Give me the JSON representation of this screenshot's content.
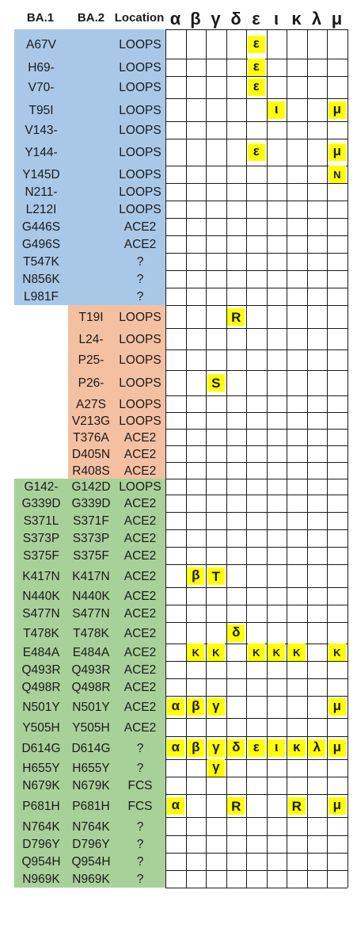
{
  "headers": {
    "ba1": "BA.1",
    "ba2": "BA.2",
    "location": "Location",
    "greek": [
      "α",
      "β",
      "γ",
      "δ",
      "ε",
      "ι",
      "κ",
      "λ",
      "μ"
    ]
  },
  "colors": {
    "ba1_band": "#a9c8e8",
    "ba2_band": "#f4c0a2",
    "shared_band": "#a8d19a",
    "highlight": "#ffff00"
  },
  "rows": [
    {
      "ba1": "A67V",
      "ba2": "",
      "loc": "LOOPS",
      "group": "ba1",
      "marks": {
        "4": "ε"
      }
    },
    {
      "ba1": "H69-",
      "ba2": "",
      "loc": "LOOPS",
      "group": "ba1",
      "marks": {
        "4": "ε"
      }
    },
    {
      "ba1": "V70-",
      "ba2": "",
      "loc": "LOOPS",
      "group": "ba1",
      "marks": {
        "4": "ε"
      }
    },
    {
      "ba1": "T95I",
      "ba2": "",
      "loc": "LOOPS",
      "group": "ba1",
      "marks": {
        "5": "ι",
        "8": "μ"
      }
    },
    {
      "ba1": "V143-",
      "ba2": "",
      "loc": "LOOPS",
      "group": "ba1",
      "marks": {}
    },
    {
      "ba1": "Y144-",
      "ba2": "",
      "loc": "LOOPS",
      "group": "ba1",
      "marks": {
        "4": "ε",
        "8": "μ"
      }
    },
    {
      "ba1": "Y145D",
      "ba2": "",
      "loc": "LOOPS",
      "group": "ba1",
      "marks": {
        "8": "N"
      }
    },
    {
      "ba1": "N211-",
      "ba2": "",
      "loc": "LOOPS",
      "group": "ba1",
      "marks": {}
    },
    {
      "ba1": "L212I",
      "ba2": "",
      "loc": "LOOPS",
      "group": "ba1",
      "marks": {}
    },
    {
      "ba1": "G446S",
      "ba2": "",
      "loc": "ACE2",
      "group": "ba1",
      "marks": {}
    },
    {
      "ba1": "G496S",
      "ba2": "",
      "loc": "ACE2",
      "group": "ba1",
      "marks": {}
    },
    {
      "ba1": "T547K",
      "ba2": "",
      "loc": "?",
      "group": "ba1",
      "marks": {}
    },
    {
      "ba1": "N856K",
      "ba2": "",
      "loc": "?",
      "group": "ba1",
      "marks": {}
    },
    {
      "ba1": "L981F",
      "ba2": "",
      "loc": "?",
      "group": "ba1",
      "marks": {}
    },
    {
      "ba1": "",
      "ba2": "T19I",
      "loc": "LOOPS",
      "group": "ba2",
      "marks": {
        "3": "R"
      }
    },
    {
      "ba1": "",
      "ba2": "L24-",
      "loc": "LOOPS",
      "group": "ba2",
      "marks": {}
    },
    {
      "ba1": "",
      "ba2": "P25-",
      "loc": "LOOPS",
      "group": "ba2",
      "marks": {}
    },
    {
      "ba1": "",
      "ba2": "P26-",
      "loc": "LOOPS",
      "group": "ba2",
      "marks": {
        "2": "S"
      }
    },
    {
      "ba1": "",
      "ba2": "A27S",
      "loc": "LOOPS",
      "group": "ba2",
      "marks": {}
    },
    {
      "ba1": "",
      "ba2": "V213G",
      "loc": "LOOPS",
      "group": "ba2",
      "marks": {}
    },
    {
      "ba1": "",
      "ba2": "T376A",
      "loc": "ACE2",
      "group": "ba2",
      "marks": {}
    },
    {
      "ba1": "",
      "ba2": "D405N",
      "loc": "ACE2",
      "group": "ba2",
      "marks": {}
    },
    {
      "ba1": "",
      "ba2": "R408S",
      "loc": "ACE2",
      "group": "ba2",
      "marks": {}
    },
    {
      "ba1": "G142-",
      "ba2": "G142D",
      "loc": "LOOPS",
      "group": "both",
      "marks": {}
    },
    {
      "ba1": "G339D",
      "ba2": "G339D",
      "loc": "ACE2",
      "group": "both",
      "marks": {}
    },
    {
      "ba1": "S371L",
      "ba2": "S371F",
      "loc": "ACE2",
      "group": "both",
      "marks": {}
    },
    {
      "ba1": "S373P",
      "ba2": "S373P",
      "loc": "ACE2",
      "group": "both",
      "marks": {}
    },
    {
      "ba1": "S375F",
      "ba2": "S375F",
      "loc": "ACE2",
      "group": "both",
      "marks": {}
    },
    {
      "ba1": "K417N",
      "ba2": "K417N",
      "loc": "ACE2",
      "group": "both",
      "marks": {
        "1": "β",
        "2": "T"
      }
    },
    {
      "ba1": "N440K",
      "ba2": "N440K",
      "loc": "ACE2",
      "group": "both",
      "marks": {}
    },
    {
      "ba1": "S477N",
      "ba2": "S477N",
      "loc": "ACE2",
      "group": "both",
      "marks": {}
    },
    {
      "ba1": "T478K",
      "ba2": "T478K",
      "loc": "ACE2",
      "group": "both",
      "marks": {
        "3": "δ"
      }
    },
    {
      "ba1": "E484A",
      "ba2": "E484A",
      "loc": "ACE2",
      "group": "both",
      "marks": {
        "1": "K",
        "2": "K",
        "4": "K",
        "5": "K",
        "6": "K",
        "8": "K"
      }
    },
    {
      "ba1": "Q493R",
      "ba2": "Q493R",
      "loc": "ACE2",
      "group": "both",
      "marks": {}
    },
    {
      "ba1": "Q498R",
      "ba2": "Q498R",
      "loc": "ACE2",
      "group": "both",
      "marks": {}
    },
    {
      "ba1": "N501Y",
      "ba2": "N501Y",
      "loc": "ACE2",
      "group": "both",
      "marks": {
        "0": "α",
        "1": "β",
        "2": "γ",
        "8": "μ"
      }
    },
    {
      "ba1": "Y505H",
      "ba2": "Y505H",
      "loc": "ACE2",
      "group": "both",
      "marks": {}
    },
    {
      "ba1": "D614G",
      "ba2": "D614G",
      "loc": "?",
      "group": "both",
      "marks": {
        "0": "α",
        "1": "β",
        "2": "γ",
        "3": "δ",
        "4": "ε",
        "5": "ι",
        "6": "κ",
        "7": "λ",
        "8": "μ"
      }
    },
    {
      "ba1": "H655Y",
      "ba2": "H655Y",
      "loc": "?",
      "group": "both",
      "marks": {
        "2": "γ"
      }
    },
    {
      "ba1": "N679K",
      "ba2": "N679K",
      "loc": "FCS",
      "group": "both",
      "marks": {}
    },
    {
      "ba1": "P681H",
      "ba2": "P681H",
      "loc": "FCS",
      "group": "both",
      "marks": {
        "0": "α",
        "3": "R",
        "6": "R",
        "8": "μ"
      }
    },
    {
      "ba1": "N764K",
      "ba2": "N764K",
      "loc": "?",
      "group": "both",
      "marks": {}
    },
    {
      "ba1": "D796Y",
      "ba2": "D796Y",
      "loc": "?",
      "group": "both",
      "marks": {}
    },
    {
      "ba1": "Q954H",
      "ba2": "Q954H",
      "loc": "?",
      "group": "both",
      "marks": {}
    },
    {
      "ba1": "N969K",
      "ba2": "N969K",
      "loc": "?",
      "group": "both",
      "marks": {}
    }
  ]
}
